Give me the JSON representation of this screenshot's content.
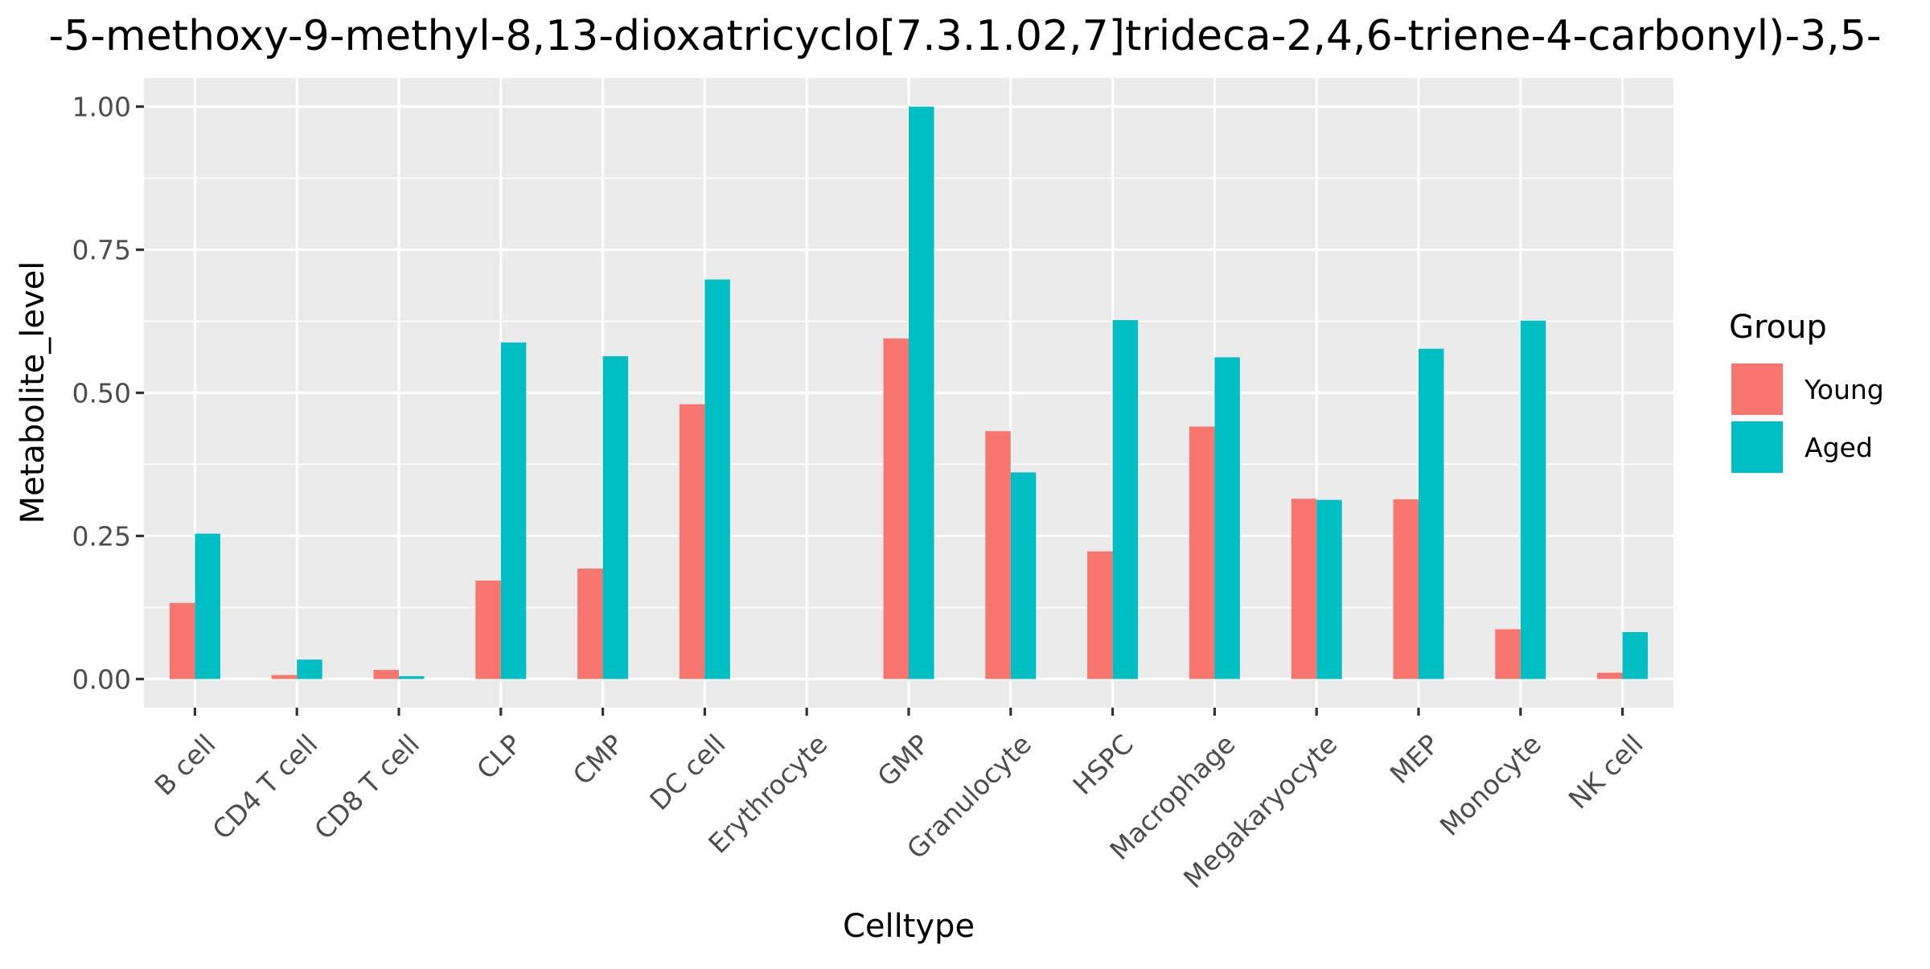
{
  "chart_data": {
    "type": "bar",
    "title": "-5-methoxy-9-methyl-8,13-dioxatricyclo[7.3.1.02,7]trideca-2,4,6-triene-4-carbonyl)-3,5-",
    "xlabel": "Celltype",
    "ylabel": "Metabolite_level",
    "ylim": [
      -0.05,
      1.05
    ],
    "yticks": [
      0.0,
      0.25,
      0.5,
      0.75,
      1.0
    ],
    "ytick_labels": [
      "0.00",
      "0.25",
      "0.50",
      "0.75",
      "1.00"
    ],
    "categories": [
      "B cell",
      "CD4 T cell",
      "CD8 T cell",
      "CLP",
      "CMP",
      "DC cell",
      "Erythrocyte",
      "GMP",
      "Granulocyte",
      "HSPC",
      "Macrophage",
      "Megakaryocyte",
      "MEP",
      "Monocyte",
      "NK cell"
    ],
    "series": [
      {
        "name": "Young",
        "color": "#F8766D",
        "values": [
          0.133,
          0.007,
          0.016,
          0.172,
          0.193,
          0.48,
          0.0,
          0.595,
          0.433,
          0.223,
          0.441,
          0.315,
          0.314,
          0.087,
          0.011
        ]
      },
      {
        "name": "Aged",
        "color": "#00BFC4",
        "values": [
          0.254,
          0.034,
          0.005,
          0.588,
          0.564,
          0.698,
          0.0,
          1.0,
          0.361,
          0.627,
          0.562,
          0.313,
          0.577,
          0.626,
          0.082
        ]
      }
    ],
    "legend": {
      "title": "Group",
      "position": "right"
    },
    "grid": true,
    "panel_background": "#EBEBEB",
    "grid_color": "#FFFFFF"
  }
}
